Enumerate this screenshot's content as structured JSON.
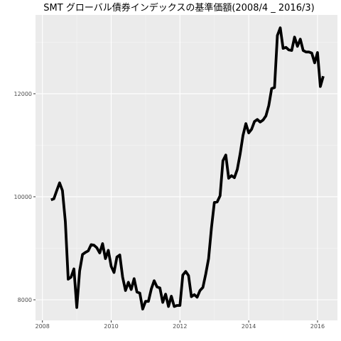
{
  "chart_data": {
    "type": "line",
    "title": "SMT グローバル債券インデックスの基準価額(2008/4 _ 2016/3)",
    "xlabel": "",
    "ylabel": "",
    "xlim": [
      2007.8,
      2016.58
    ],
    "ylim": [
      7600,
      13530
    ],
    "grid": true,
    "x_ticks": [
      2008,
      2010,
      2012,
      2014,
      2016
    ],
    "y_ticks": [
      8000,
      10000,
      12000
    ],
    "colors": {
      "panel": "#ebebeb",
      "grid_major": "#ffffff",
      "grid_minor": "#f5f5f5",
      "line": "#000000"
    },
    "series": [
      {
        "x": [
          2008.25,
          2008.333,
          2008.417,
          2008.5,
          2008.583,
          2008.667,
          2008.75,
          2008.833,
          2008.917,
          2009.0,
          2009.083,
          2009.167,
          2009.25,
          2009.333,
          2009.417,
          2009.5,
          2009.583,
          2009.667,
          2009.75,
          2009.833,
          2009.917,
          2010.0,
          2010.083,
          2010.167,
          2010.25,
          2010.333,
          2010.417,
          2010.5,
          2010.583,
          2010.667,
          2010.75,
          2010.833,
          2010.917,
          2011.0,
          2011.083,
          2011.167,
          2011.25,
          2011.333,
          2011.417,
          2011.5,
          2011.583,
          2011.667,
          2011.75,
          2011.833,
          2011.917,
          2012.0,
          2012.083,
          2012.167,
          2012.25,
          2012.333,
          2012.417,
          2012.5,
          2012.583,
          2012.667,
          2012.75,
          2012.833,
          2012.917,
          2013.0,
          2013.083,
          2013.167,
          2013.25,
          2013.333,
          2013.417,
          2013.5,
          2013.583,
          2013.667,
          2013.75,
          2013.833,
          2013.917,
          2014.0,
          2014.083,
          2014.167,
          2014.25,
          2014.333,
          2014.417,
          2014.5,
          2014.583,
          2014.667,
          2014.75,
          2014.833,
          2014.917,
          2015.0,
          2015.083,
          2015.167,
          2015.25,
          2015.333,
          2015.417,
          2015.5,
          2015.583,
          2015.667,
          2015.75,
          2015.833,
          2015.917,
          2016.0,
          2016.083,
          2016.167
        ],
        "values": [
          9940,
          9960,
          10120,
          10270,
          10120,
          9520,
          8400,
          8440,
          8600,
          7850,
          8560,
          8880,
          8920,
          8950,
          9070,
          9060,
          9010,
          8910,
          9090,
          8800,
          8960,
          8650,
          8530,
          8830,
          8870,
          8440,
          8180,
          8340,
          8200,
          8410,
          8150,
          8130,
          7820,
          7970,
          7970,
          8210,
          8370,
          8250,
          8230,
          7950,
          8110,
          7870,
          8070,
          7870,
          7890,
          7890,
          8480,
          8550,
          8470,
          8060,
          8100,
          8050,
          8180,
          8240,
          8500,
          8800,
          9400,
          9890,
          9900,
          10020,
          10700,
          10810,
          10360,
          10410,
          10370,
          10530,
          10830,
          11190,
          11420,
          11240,
          11310,
          11460,
          11500,
          11450,
          11490,
          11570,
          11770,
          12100,
          12120,
          13130,
          13280,
          12880,
          12900,
          12850,
          12840,
          13100,
          12920,
          13060,
          12840,
          12810,
          12810,
          12790,
          12600,
          12800,
          12140,
          12340
        ]
      }
    ]
  }
}
